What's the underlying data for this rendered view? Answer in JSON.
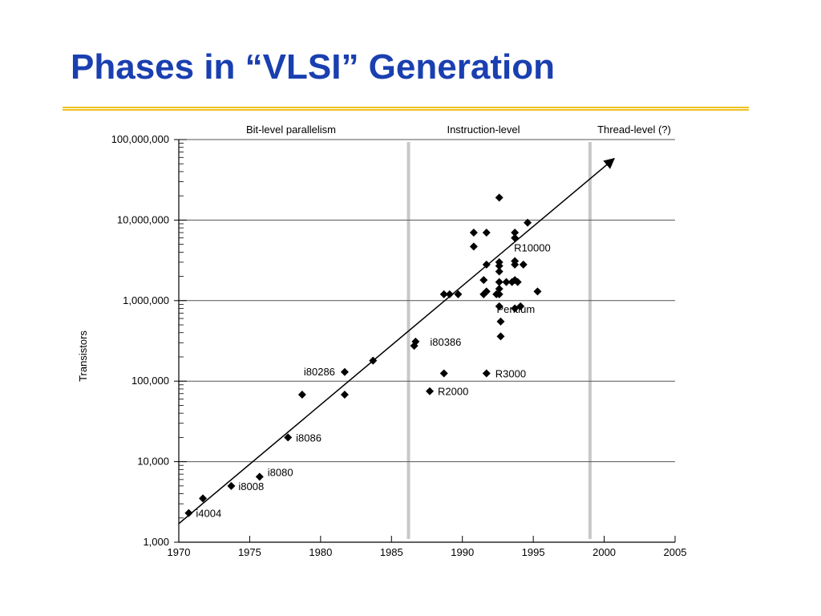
{
  "slide": {
    "title": "Phases in “VLSI” Generation",
    "accent_color": "#f0c020",
    "title_color": "#1a3fb0"
  },
  "chart_data": {
    "type": "scatter",
    "xlabel": "",
    "ylabel": "Transistors",
    "xlim": [
      1970,
      2005
    ],
    "ylim": [
      1000,
      100000000
    ],
    "y_scale": "log",
    "x_ticks": [
      1970,
      1975,
      1980,
      1985,
      1990,
      1995,
      2000,
      2005
    ],
    "y_ticks": [
      {
        "value": 1000,
        "label": "1,000"
      },
      {
        "value": 10000,
        "label": "10,000"
      },
      {
        "value": 100000,
        "label": "100,000"
      },
      {
        "value": 1000000,
        "label": "1,000,000"
      },
      {
        "value": 10000000,
        "label": "10,000,000"
      },
      {
        "value": 100000000,
        "label": "100,000,000"
      }
    ],
    "phases": [
      {
        "label": "Bit-level parallelism",
        "from": 1970,
        "to": 1986.2
      },
      {
        "label": "Instruction-level",
        "from": 1986.2,
        "to": 1999
      },
      {
        "label": "Thread-level (?)",
        "from": 1999,
        "to": 2005
      }
    ],
    "phase_boundaries": [
      1986.2,
      1999
    ],
    "trend": {
      "from": [
        1970,
        1700
      ],
      "to": [
        2000.7,
        58000000
      ]
    },
    "points": [
      {
        "x": 1970.7,
        "y": 2300,
        "label": "i4004"
      },
      {
        "x": 1971.7,
        "y": 3500,
        "label": ""
      },
      {
        "x": 1973.7,
        "y": 5000,
        "label": "i8008"
      },
      {
        "x": 1975.7,
        "y": 6500,
        "label": "i8080"
      },
      {
        "x": 1977.7,
        "y": 20000,
        "label": "i8086"
      },
      {
        "x": 1978.7,
        "y": 68000,
        "label": ""
      },
      {
        "x": 1981.7,
        "y": 130000,
        "label": "i80286"
      },
      {
        "x": 1981.7,
        "y": 68000,
        "label": ""
      },
      {
        "x": 1983.7,
        "y": 180000,
        "label": ""
      },
      {
        "x": 1986.6,
        "y": 275000,
        "label": ""
      },
      {
        "x": 1986.7,
        "y": 310000,
        "label": "i80386"
      },
      {
        "x": 1987.7,
        "y": 75000,
        "label": "R2000"
      },
      {
        "x": 1988.7,
        "y": 125000,
        "label": ""
      },
      {
        "x": 1988.7,
        "y": 1200000,
        "label": ""
      },
      {
        "x": 1989.1,
        "y": 1200000,
        "label": ""
      },
      {
        "x": 1989.7,
        "y": 1200000,
        "label": ""
      },
      {
        "x": 1990.8,
        "y": 7000000,
        "label": ""
      },
      {
        "x": 1990.8,
        "y": 4700000,
        "label": ""
      },
      {
        "x": 1991.5,
        "y": 1800000,
        "label": ""
      },
      {
        "x": 1991.5,
        "y": 1200000,
        "label": ""
      },
      {
        "x": 1991.7,
        "y": 7000000,
        "label": ""
      },
      {
        "x": 1991.7,
        "y": 2800000,
        "label": ""
      },
      {
        "x": 1991.7,
        "y": 1300000,
        "label": ""
      },
      {
        "x": 1991.7,
        "y": 125000,
        "label": "R3000"
      },
      {
        "x": 1992.4,
        "y": 1200000,
        "label": ""
      },
      {
        "x": 1992.6,
        "y": 19000000,
        "label": ""
      },
      {
        "x": 1992.6,
        "y": 3000000,
        "label": ""
      },
      {
        "x": 1992.6,
        "y": 2700000,
        "label": ""
      },
      {
        "x": 1992.6,
        "y": 2300000,
        "label": ""
      },
      {
        "x": 1992.6,
        "y": 1700000,
        "label": ""
      },
      {
        "x": 1992.6,
        "y": 1400000,
        "label": ""
      },
      {
        "x": 1992.6,
        "y": 1200000,
        "label": ""
      },
      {
        "x": 1992.6,
        "y": 850000,
        "label": ""
      },
      {
        "x": 1992.7,
        "y": 550000,
        "label": "Pentium"
      },
      {
        "x": 1992.7,
        "y": 360000,
        "label": ""
      },
      {
        "x": 1993.1,
        "y": 1700000,
        "label": ""
      },
      {
        "x": 1993.5,
        "y": 1700000,
        "label": ""
      },
      {
        "x": 1993.7,
        "y": 7000000,
        "label": ""
      },
      {
        "x": 1993.7,
        "y": 6000000,
        "label": "R10000"
      },
      {
        "x": 1993.7,
        "y": 3100000,
        "label": ""
      },
      {
        "x": 1993.7,
        "y": 2800000,
        "label": ""
      },
      {
        "x": 1993.7,
        "y": 1800000,
        "label": ""
      },
      {
        "x": 1993.7,
        "y": 800000,
        "label": ""
      },
      {
        "x": 1993.9,
        "y": 1700000,
        "label": ""
      },
      {
        "x": 1994.1,
        "y": 850000,
        "label": ""
      },
      {
        "x": 1994.3,
        "y": 2800000,
        "label": ""
      },
      {
        "x": 1994.6,
        "y": 9300000,
        "label": ""
      },
      {
        "x": 1995.3,
        "y": 1300000,
        "label": ""
      }
    ]
  }
}
